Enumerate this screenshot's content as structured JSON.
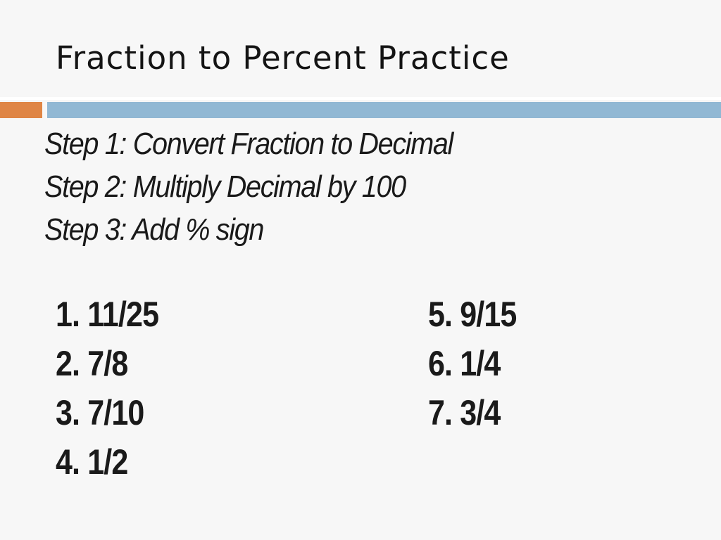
{
  "slide": {
    "title": "Fraction to Percent Practice",
    "accent_colors": {
      "orange": "#df8545",
      "blue": "#91b8d4"
    },
    "steps": [
      "Step 1: Convert Fraction to Decimal",
      "Step 2: Multiply Decimal by 100",
      "Step 3: Add % sign"
    ],
    "problems_left": [
      "1. 11/25",
      "2. 7/8",
      "3. 7/10",
      "4. 1/2"
    ],
    "problems_right": [
      "5. 9/15",
      "6. 1/4",
      "7. 3/4"
    ]
  }
}
